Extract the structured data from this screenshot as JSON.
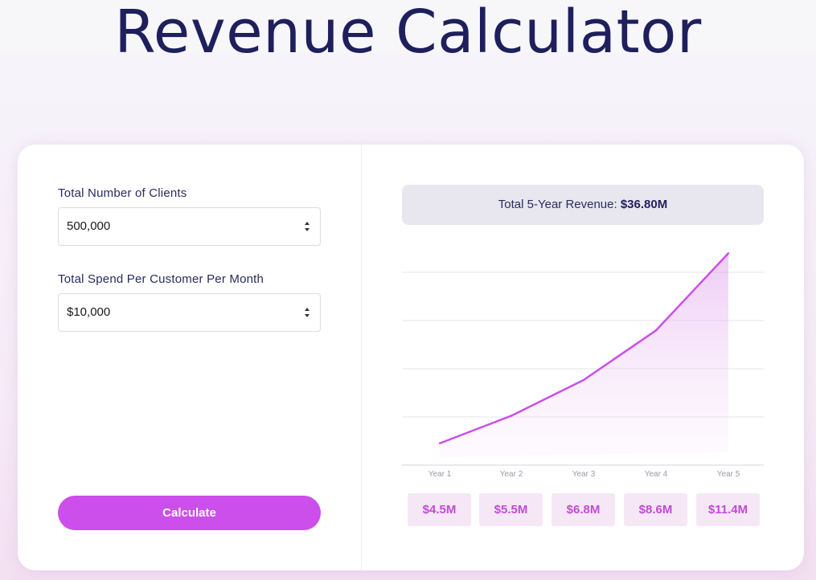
{
  "page": {
    "title": "Revenue Calculator"
  },
  "form": {
    "clients_label": "Total Number of Clients",
    "clients_value": "500,000",
    "spend_label": "Total Spend Per Customer Per Month",
    "spend_value": "$10,000",
    "calculate_label": "Calculate"
  },
  "summary": {
    "total_label": "Total 5-Year Revenue:",
    "total_value": "$36.80M"
  },
  "colors": {
    "accent": "#cc4eeb",
    "title": "#1e1f5c",
    "pill_bg": "#f6e7f6",
    "pill_text": "#c24ad8"
  },
  "chart_data": {
    "type": "area",
    "categories": [
      "Year 1",
      "Year 2",
      "Year 3",
      "Year 4",
      "Year 5"
    ],
    "values": [
      4.5,
      5.5,
      6.8,
      8.6,
      11.4
    ],
    "value_labels": [
      "$4.5M",
      "$5.5M",
      "$6.8M",
      "$8.6M",
      "$11.4M"
    ],
    "title": "",
    "xlabel": "",
    "ylabel": "",
    "ylim": [
      4,
      11
    ],
    "grid": true,
    "legend": "none"
  }
}
